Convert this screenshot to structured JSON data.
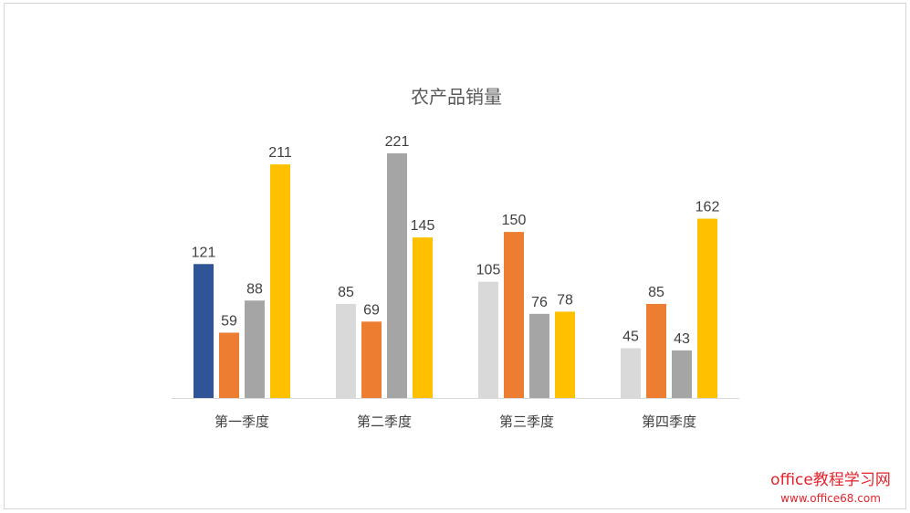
{
  "chart_data": {
    "type": "bar",
    "title": "农产品销量",
    "xlabel": "",
    "ylabel": "",
    "ylim": [
      0,
      221
    ],
    "grid": false,
    "legend": "none",
    "categories": [
      "第一季度",
      "第二季度",
      "第三季度",
      "第四季度"
    ],
    "values": [
      [
        121,
        59,
        88,
        211
      ],
      [
        85,
        69,
        221,
        145
      ],
      [
        105,
        150,
        76,
        78
      ],
      [
        45,
        85,
        43,
        162
      ]
    ],
    "colors": [
      [
        "#2f5597",
        "#ed7d31",
        "#a5a5a5",
        "#ffc000"
      ],
      [
        "#d9d9d9",
        "#ed7d31",
        "#a5a5a5",
        "#ffc000"
      ],
      [
        "#d9d9d9",
        "#ed7d31",
        "#a5a5a5",
        "#ffc000"
      ],
      [
        "#d9d9d9",
        "#ed7d31",
        "#a5a5a5",
        "#ffc000"
      ]
    ]
  },
  "watermark": {
    "line1": "office教程学习网",
    "line2": "www.office68.com"
  }
}
